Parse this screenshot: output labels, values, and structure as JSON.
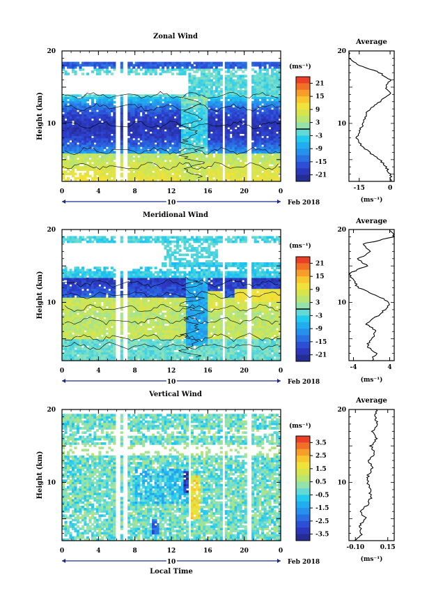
{
  "figure": {
    "date_label": "Feb 2018",
    "xlabel": "Local Time",
    "day_label": "10"
  },
  "chart_data": [
    {
      "type": "heatmap",
      "title": "Zonal Wind",
      "xlabel": "",
      "ylabel": "Height (km)",
      "x_ticks": [
        "0",
        "4",
        "8",
        "12",
        "16",
        "20",
        "0"
      ],
      "xlim": [
        0,
        24
      ],
      "ylim": [
        2,
        20
      ],
      "y_ticks": [
        "20",
        "10"
      ],
      "colorbar": {
        "unit": "(ms⁻¹)",
        "range": [
          -24,
          24
        ],
        "ticks": [
          "21",
          "15",
          "9",
          "3",
          "-3",
          "-9",
          "-15",
          "-21"
        ],
        "zero_line": 0
      },
      "profile": {
        "title": "Average",
        "xlabel": "(ms⁻¹)",
        "x_ticks": [
          "-15",
          "0"
        ],
        "xlim": [
          -20,
          2
        ],
        "heights": [
          2,
          3,
          4,
          5,
          6,
          7,
          8,
          9,
          10,
          11,
          12,
          13,
          14,
          15,
          16,
          17,
          18,
          19,
          20
        ],
        "values": [
          1,
          0,
          -2,
          -5,
          -10,
          -14,
          -16,
          -15,
          -13,
          -12,
          -10,
          -5,
          0,
          -2,
          0,
          -5,
          -15,
          -20,
          -20
        ]
      }
    },
    {
      "type": "heatmap",
      "title": "Meridional Wind",
      "xlabel": "",
      "ylabel": "Height (km)",
      "x_ticks": [
        "0",
        "4",
        "8",
        "12",
        "16",
        "20",
        "0"
      ],
      "xlim": [
        0,
        24
      ],
      "ylim": [
        2,
        20
      ],
      "y_ticks": [
        "20",
        "10"
      ],
      "colorbar": {
        "unit": "(ms⁻¹)",
        "range": [
          -24,
          24
        ],
        "ticks": [
          "21",
          "15",
          "9",
          "3",
          "-3",
          "-9",
          "-15",
          "-21"
        ],
        "zero_line": 0
      },
      "profile": {
        "title": "Average",
        "xlabel": "(ms⁻¹)",
        "x_ticks": [
          "-4",
          "4"
        ],
        "xlim": [
          -5,
          5
        ],
        "heights": [
          2,
          3,
          4,
          5,
          6,
          7,
          8,
          9,
          10,
          11,
          12,
          13,
          14,
          15,
          16,
          17,
          18,
          19,
          20
        ],
        "values": [
          0,
          1,
          -1,
          0,
          1,
          -1,
          1,
          3,
          4,
          1,
          -3,
          -4,
          -5,
          -1,
          -3,
          0,
          -2,
          5,
          4
        ]
      }
    },
    {
      "type": "heatmap",
      "title": "Vertical Wind",
      "xlabel": "Local Time",
      "ylabel": "Height (km)",
      "x_ticks": [
        "0",
        "4",
        "8",
        "12",
        "16",
        "20",
        "0"
      ],
      "xlim": [
        0,
        24
      ],
      "ylim": [
        2,
        20
      ],
      "y_ticks": [
        "20",
        "10"
      ],
      "colorbar": {
        "unit": "(ms⁻¹)",
        "range": [
          -4,
          4
        ],
        "ticks": [
          "3.5",
          "2.5",
          "1.5",
          "0.5",
          "-0.5",
          "-1.5",
          "-2.5",
          "-3.5"
        ],
        "zero_line": null
      },
      "profile": {
        "title": "Average",
        "xlabel": "(ms⁻¹)",
        "x_ticks": [
          "-0.10",
          "0.15"
        ],
        "xlim": [
          -0.15,
          0.2
        ],
        "heights": [
          2,
          3,
          4,
          5,
          6,
          7,
          8,
          9,
          10,
          11,
          12,
          13,
          14,
          15,
          16,
          17,
          18,
          19,
          20
        ],
        "values": [
          -0.1,
          -0.05,
          -0.07,
          -0.02,
          -0.06,
          0.0,
          0.02,
          0.01,
          -0.01,
          0.0,
          0.03,
          0.0,
          0.05,
          0.02,
          0.06,
          0.03,
          0.07,
          0.05,
          0.06
        ]
      }
    }
  ]
}
